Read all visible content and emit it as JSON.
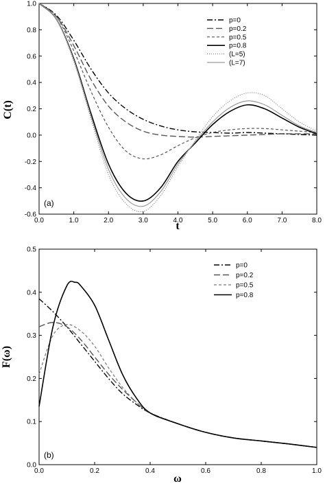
{
  "chart_data": [
    {
      "type": "line",
      "panel_label": "(a)",
      "xlabel": "t",
      "ylabel": "C(t)",
      "xlim": [
        0,
        8
      ],
      "ylim": [
        -0.6,
        1.0
      ],
      "xticks": [
        "0.0",
        "1.0",
        "2.0",
        "3.0",
        "4.0",
        "5.0",
        "6.0",
        "7.0",
        "8.0"
      ],
      "yticks": [
        "1.0",
        "0.8",
        "0.6",
        "0.4",
        "0.2",
        "0.0",
        "-0.2",
        "-0.4",
        "-0.6"
      ],
      "legend_position": "top-right",
      "grid": false,
      "series": [
        {
          "name": "p=0",
          "style": "dash-dot",
          "color": "#000000",
          "x": [
            0,
            0.5,
            1,
            1.5,
            2,
            2.5,
            3,
            3.5,
            4,
            4.5,
            5,
            5.5,
            6,
            6.5,
            7,
            7.5,
            8
          ],
          "y": [
            1.0,
            0.91,
            0.72,
            0.5,
            0.32,
            0.2,
            0.12,
            0.07,
            0.04,
            0.025,
            0.02,
            0.015,
            0.02,
            0.015,
            0.01,
            0.005,
            0.0
          ]
        },
        {
          "name": "p=0.2",
          "style": "long-dash",
          "color": "#555555",
          "x": [
            0,
            0.5,
            1,
            1.5,
            2,
            2.5,
            3,
            3.5,
            4,
            4.5,
            5,
            5.5,
            6,
            6.5,
            7,
            7.5,
            8
          ],
          "y": [
            1.0,
            0.9,
            0.68,
            0.42,
            0.22,
            0.1,
            0.03,
            0.0,
            -0.01,
            -0.015,
            -0.01,
            -0.005,
            0.0,
            0.005,
            0.01,
            0.01,
            0.01
          ]
        },
        {
          "name": "p=0.5",
          "style": "short-dash",
          "color": "#555555",
          "x": [
            0,
            0.5,
            1,
            1.5,
            2,
            2.5,
            3,
            3.5,
            4,
            4.5,
            5,
            5.5,
            6,
            6.5,
            7,
            7.5,
            8
          ],
          "y": [
            1.0,
            0.9,
            0.64,
            0.33,
            0.06,
            -0.12,
            -0.18,
            -0.15,
            -0.08,
            -0.02,
            0.02,
            0.04,
            0.05,
            0.05,
            0.04,
            0.03,
            0.02
          ]
        },
        {
          "name": "p=0.8",
          "style": "solid",
          "color": "#000000",
          "x": [
            0,
            0.5,
            1,
            1.5,
            2,
            2.5,
            3,
            3.5,
            4,
            4.5,
            5,
            5.5,
            6,
            6.5,
            7,
            7.5,
            8
          ],
          "y": [
            1.0,
            0.88,
            0.58,
            0.16,
            -0.22,
            -0.44,
            -0.5,
            -0.4,
            -0.2,
            -0.06,
            0.08,
            0.18,
            0.23,
            0.2,
            0.13,
            0.06,
            0.01
          ]
        },
        {
          "name": "(L=5)",
          "style": "dotted",
          "color": "#666666",
          "x": [
            0,
            0.5,
            1,
            1.5,
            2,
            2.5,
            3,
            3.5,
            4,
            4.5,
            5,
            5.5,
            6,
            6.5,
            7,
            7.5,
            8
          ],
          "y": [
            1.0,
            0.88,
            0.56,
            0.12,
            -0.3,
            -0.52,
            -0.58,
            -0.46,
            -0.24,
            -0.04,
            0.14,
            0.26,
            0.32,
            0.3,
            0.2,
            0.1,
            0.03
          ]
        },
        {
          "name": "(L=7)",
          "style": "solid-gray",
          "color": "#9a9a9a",
          "x": [
            0,
            0.5,
            1,
            1.5,
            2,
            2.5,
            3,
            3.5,
            4,
            4.5,
            5,
            5.5,
            6,
            6.5,
            7,
            7.5,
            8
          ],
          "y": [
            1.0,
            0.88,
            0.57,
            0.14,
            -0.26,
            -0.48,
            -0.54,
            -0.43,
            -0.22,
            -0.05,
            0.1,
            0.21,
            0.26,
            0.23,
            0.15,
            0.07,
            0.02
          ]
        }
      ]
    },
    {
      "type": "line",
      "panel_label": "(b)",
      "xlabel": "ω",
      "ylabel": "F(ω)",
      "xlim": [
        0,
        1
      ],
      "ylim": [
        0,
        0.5
      ],
      "xticks": [
        "0.0",
        "0.2",
        "0.4",
        "0.6",
        "0.8",
        "1.0"
      ],
      "yticks": [
        "0.5",
        "0.4",
        "0.3",
        "0.2",
        "0.1",
        "0.0"
      ],
      "legend_position": "top-right",
      "grid": false,
      "series": [
        {
          "name": "p=0",
          "style": "dash-dot",
          "color": "#000000",
          "x": [
            0,
            0.05,
            0.1,
            0.15,
            0.2,
            0.25,
            0.3,
            0.35,
            0.4,
            0.5,
            0.6,
            0.7,
            0.8,
            0.9,
            1.0
          ],
          "y": [
            0.385,
            0.355,
            0.32,
            0.28,
            0.24,
            0.2,
            0.165,
            0.14,
            0.12,
            0.095,
            0.075,
            0.062,
            0.055,
            0.048,
            0.04
          ]
        },
        {
          "name": "p=0.2",
          "style": "long-dash",
          "color": "#555555",
          "x": [
            0,
            0.05,
            0.1,
            0.15,
            0.2,
            0.25,
            0.3,
            0.35,
            0.4,
            0.5,
            0.6,
            0.7,
            0.8,
            0.9,
            1.0
          ],
          "y": [
            0.32,
            0.33,
            0.32,
            0.29,
            0.25,
            0.21,
            0.175,
            0.145,
            0.12,
            0.095,
            0.075,
            0.062,
            0.055,
            0.048,
            0.04
          ]
        },
        {
          "name": "p=0.5",
          "style": "short-dash",
          "color": "#777777",
          "x": [
            0,
            0.05,
            0.1,
            0.15,
            0.2,
            0.25,
            0.3,
            0.35,
            0.4,
            0.5,
            0.6,
            0.7,
            0.8,
            0.9,
            1.0
          ],
          "y": [
            0.21,
            0.3,
            0.325,
            0.31,
            0.275,
            0.225,
            0.18,
            0.145,
            0.12,
            0.095,
            0.075,
            0.062,
            0.055,
            0.048,
            0.04
          ]
        },
        {
          "name": "p=0.8",
          "style": "solid",
          "color": "#000000",
          "x": [
            0,
            0.05,
            0.1,
            0.13,
            0.15,
            0.2,
            0.25,
            0.3,
            0.35,
            0.4,
            0.5,
            0.6,
            0.7,
            0.8,
            0.9,
            1.0
          ],
          "y": [
            0.135,
            0.32,
            0.415,
            0.423,
            0.415,
            0.37,
            0.29,
            0.21,
            0.155,
            0.12,
            0.095,
            0.075,
            0.062,
            0.055,
            0.048,
            0.04
          ]
        }
      ]
    }
  ]
}
